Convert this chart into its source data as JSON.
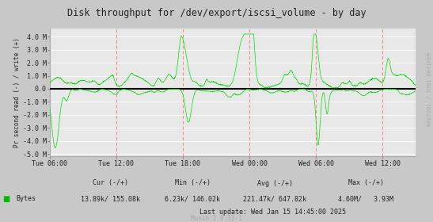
{
  "title": "Disk throughput for /dev/export/iscsi_volume - by day",
  "ylabel": "Pr second read (-) / write (+)",
  "bg_color": "#c8c8c8",
  "plot_bg_color": "#e8e8e8",
  "grid_h_color": "#ffffff",
  "vline_color": "#ff8080",
  "line_color": "#00dd00",
  "zero_line_color": "#000000",
  "ylim": [
    -5200000,
    4600000
  ],
  "yticks": [
    -5000000,
    -4000000,
    -3000000,
    -2000000,
    -1000000,
    0.0,
    1000000,
    2000000,
    3000000,
    4000000
  ],
  "ytick_labels": [
    "-5.0 M",
    "-4.0 M",
    "-3.0 M",
    "-2.0 M",
    "-1.0 M",
    "0.0",
    "1.0 M",
    "2.0 M",
    "3.0 M",
    "4.0 M"
  ],
  "xtick_labels": [
    "Tue 06:00",
    "Tue 12:00",
    "Tue 18:00",
    "Wed 00:00",
    "Wed 06:00",
    "Wed 12:00"
  ],
  "legend_label": "Bytes",
  "legend_color": "#00bb00",
  "cur_label": "Cur (-/+)",
  "cur_val": "13.89k/ 155.08k",
  "min_label": "Min (-/+)",
  "min_val": "6.23k/ 146.02k",
  "avg_label": "Avg (-/+)",
  "avg_val": "221.47k/ 647.82k",
  "max_label": "Max (-/+)",
  "max_val": "4.60M/   3.93M",
  "last_update": "Last update: Wed Jan 15 14:45:00 2025",
  "munin_version": "Munin 2.0.33-1",
  "right_label": "RRDTOOL / TOBI OETIKER"
}
